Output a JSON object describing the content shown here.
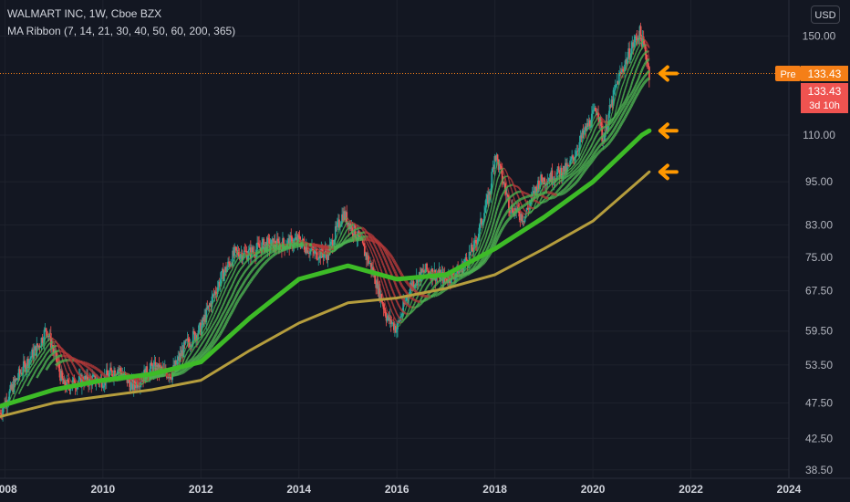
{
  "legend": {
    "symbol_line": "WALMART INC, 1W, Cboe BZX",
    "indicator_line": "MA Ribbon (7, 14, 21, 30, 40, 50, 60, 200, 365)"
  },
  "currency_button": "USD",
  "price_tags": {
    "pre_label": "Pre",
    "pre_value": "133.43",
    "last_value": "133.43",
    "countdown": "3d 10h",
    "pre_color": "#f57f17",
    "last_color": "#ef5350"
  },
  "colors": {
    "background": "#131722",
    "up": "#26a69a",
    "down": "#ef5350",
    "ma_short_up": "#4caf50",
    "ma_short_down": "#b33939",
    "ma_200": "#3dbb27",
    "ma_365": "#b59d3d",
    "arrow": "#ff9800"
  },
  "chart_data": {
    "type": "line",
    "title": "WALMART INC, 1W, Cboe BZX",
    "xlabel": "",
    "ylabel": "",
    "x_ticks": [
      "2008",
      "2010",
      "2012",
      "2014",
      "2016",
      "2018",
      "2020",
      "2022",
      "2024"
    ],
    "y_ticks": [
      "150.00",
      "133.43",
      "110.00",
      "95.00",
      "83.00",
      "75.00",
      "67.50",
      "59.50",
      "53.50",
      "47.50",
      "42.50",
      "38.50"
    ],
    "y_scale": "log",
    "xlim": [
      2007.9,
      2024.0
    ],
    "ylim": [
      37.5,
      168
    ],
    "last_price": 133.43,
    "price": {
      "x": [
        2007.9,
        2008.3,
        2008.7,
        2008.85,
        2009.2,
        2009.6,
        2010.0,
        2010.3,
        2010.6,
        2011.0,
        2011.4,
        2011.7,
        2012.0,
        2012.4,
        2012.7,
        2013.0,
        2013.3,
        2013.6,
        2014.0,
        2014.3,
        2014.6,
        2014.9,
        2015.2,
        2015.5,
        2015.8,
        2016.0,
        2016.3,
        2016.6,
        2017.0,
        2017.3,
        2017.6,
        2017.9,
        2018.0,
        2018.3,
        2018.6,
        2018.9,
        2019.2,
        2019.5,
        2019.8,
        2020.1,
        2020.2,
        2020.5,
        2020.8,
        2020.95,
        2021.1,
        2021.15
      ],
      "values": [
        46,
        52,
        57,
        60,
        50,
        51,
        51,
        53,
        50,
        53,
        52,
        57,
        60,
        70,
        76,
        76,
        78,
        78,
        79,
        76,
        76,
        86,
        80,
        72,
        62,
        60,
        69,
        72,
        70,
        72,
        78,
        92,
        104,
        88,
        85,
        95,
        97,
        99,
        110,
        120,
        108,
        130,
        145,
        152,
        140,
        133.43
      ]
    },
    "series": [
      {
        "name": "MA 200",
        "x": [
          2007.9,
          2009.0,
          2010.0,
          2011.0,
          2012.0,
          2013.0,
          2014.0,
          2015.0,
          2016.0,
          2017.0,
          2018.0,
          2019.0,
          2020.0,
          2021.0,
          2021.15
        ],
        "values": [
          47,
          49.5,
          51,
          52,
          54,
          62,
          70,
          73,
          70,
          71,
          77,
          85,
          95,
          110,
          111.5
        ]
      },
      {
        "name": "MA 365",
        "x": [
          2007.9,
          2009.0,
          2010.0,
          2011.0,
          2012.0,
          2013.0,
          2014.0,
          2015.0,
          2016.0,
          2017.0,
          2018.0,
          2019.0,
          2020.0,
          2021.0,
          2021.15
        ],
        "values": [
          45.5,
          47.5,
          48.5,
          49.5,
          51,
          56,
          61,
          65,
          66,
          68,
          71,
          77,
          84,
          96,
          98
        ]
      }
    ]
  }
}
